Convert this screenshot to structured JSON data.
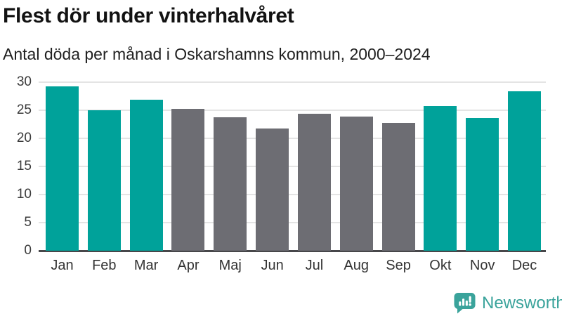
{
  "header": {
    "title": "Flest dör under vinterhalvåret",
    "subtitle": "Antal döda per månad i Oskarshamns kommun, 2000–2024"
  },
  "footer": {
    "brand": "Newsworthy",
    "brand_color": "#3aa39b",
    "icon": "newsworthy-speech-bubble-barchart-icon"
  },
  "chart_data": {
    "type": "bar",
    "title": "Flest dör under vinterhalvåret",
    "subtitle": "Antal döda per månad i Oskarshamns kommun, 2000–2024",
    "categories": [
      "Jan",
      "Feb",
      "Mar",
      "Apr",
      "Maj",
      "Jun",
      "Jul",
      "Aug",
      "Sep",
      "Okt",
      "Nov",
      "Dec"
    ],
    "values": [
      29.3,
      25.0,
      26.9,
      25.2,
      23.8,
      21.8,
      24.4,
      23.9,
      22.8,
      25.8,
      23.6,
      28.4
    ],
    "bar_colors": [
      "highlight",
      "highlight",
      "highlight",
      "muted",
      "muted",
      "muted",
      "muted",
      "muted",
      "muted",
      "highlight",
      "highlight",
      "highlight"
    ],
    "colors": {
      "highlight": "#00a29a",
      "muted": "#6d6d73"
    },
    "xlabel": "",
    "ylabel": "",
    "ylim": [
      0,
      30
    ],
    "yticks": [
      0,
      5,
      10,
      15,
      20,
      25,
      30
    ],
    "grid": "horizontal",
    "legend": "none"
  }
}
